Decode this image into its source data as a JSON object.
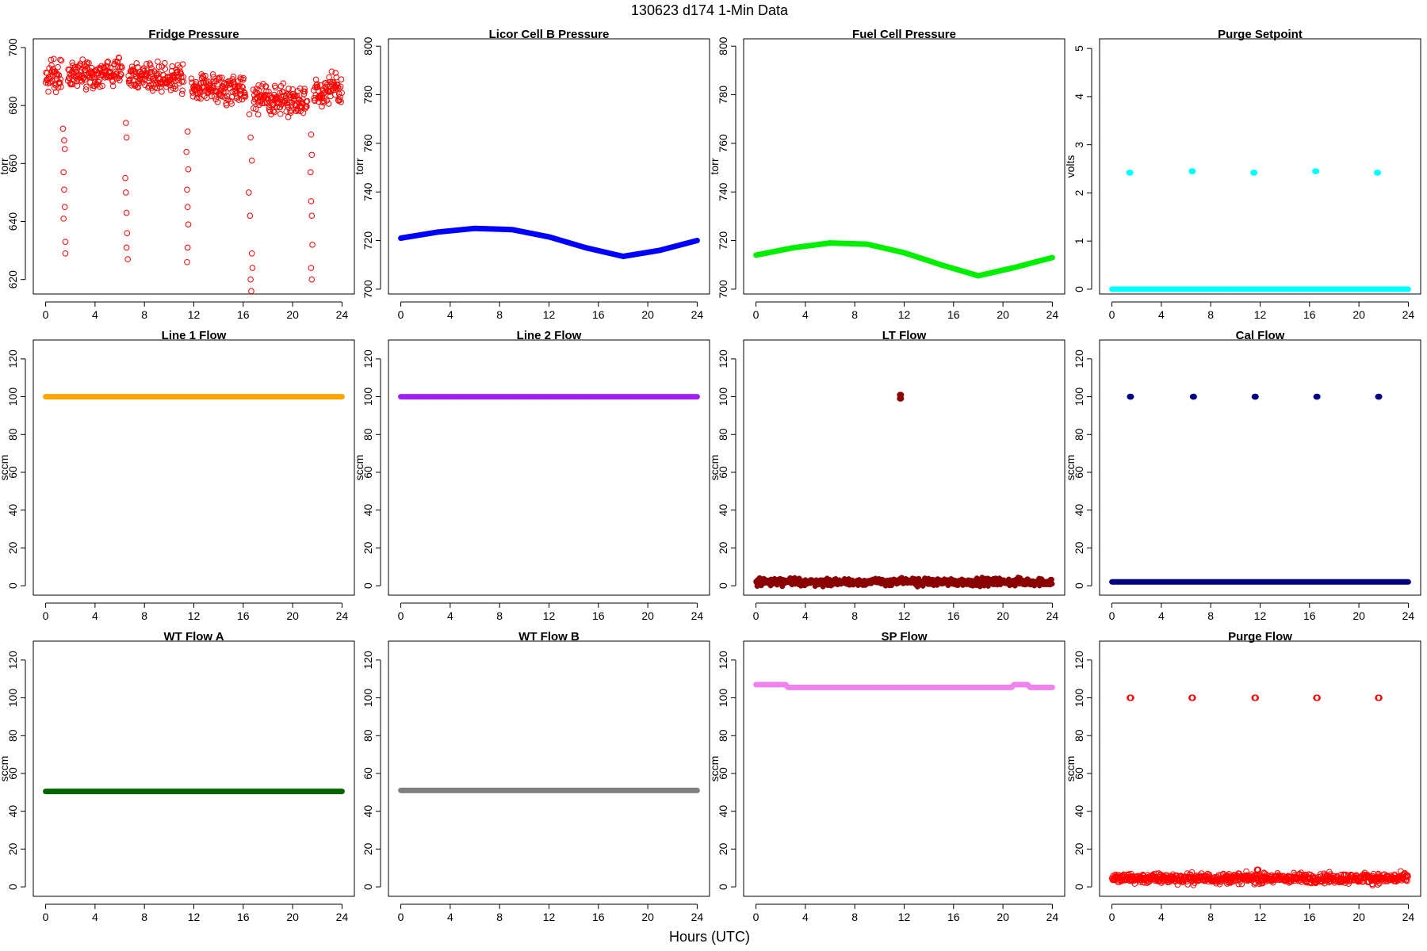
{
  "figure": {
    "suptitle": "130623    d174    1-Min Data",
    "xlabel": "Hours (UTC)"
  },
  "chart_data": [
    {
      "type": "scatter",
      "title": "Fridge Pressure",
      "ylabel": "torr",
      "ylim": [
        615,
        703
      ],
      "yticks": [
        620,
        640,
        660,
        680,
        700
      ],
      "xlim": [
        -1,
        25
      ],
      "xticks": [
        0,
        4,
        8,
        12,
        16,
        20,
        24
      ],
      "color": "#ff0000",
      "marker": "open-circle",
      "series": [
        {
          "kind": "band",
          "segments": [
            [
              0,
              1.3,
              690,
              5
            ],
            [
              1.8,
              6.2,
              691,
              4.5
            ],
            [
              6.7,
              11.2,
              690,
              4.5
            ],
            [
              11.8,
              16.2,
              686,
              4.5
            ],
            [
              16.8,
              21.2,
              682,
              4.5
            ],
            [
              21.7,
              24,
              685,
              5
            ]
          ]
        },
        {
          "kind": "dips",
          "points": [
            [
              1.4,
              672
            ],
            [
              1.5,
              668
            ],
            [
              1.55,
              665
            ],
            [
              1.45,
              657
            ],
            [
              1.5,
              651
            ],
            [
              1.55,
              645
            ],
            [
              1.45,
              641
            ],
            [
              1.6,
              633
            ],
            [
              1.6,
              629
            ],
            [
              6.5,
              674
            ],
            [
              6.55,
              669
            ],
            [
              6.45,
              655
            ],
            [
              6.5,
              650
            ],
            [
              6.55,
              643
            ],
            [
              6.6,
              636
            ],
            [
              6.55,
              631
            ],
            [
              6.65,
              627
            ],
            [
              11.5,
              671
            ],
            [
              11.4,
              664
            ],
            [
              11.55,
              658
            ],
            [
              11.45,
              651
            ],
            [
              11.5,
              645
            ],
            [
              11.55,
              639
            ],
            [
              11.5,
              631
            ],
            [
              11.45,
              626
            ],
            [
              16.5,
              677
            ],
            [
              16.6,
              669
            ],
            [
              16.7,
              661
            ],
            [
              16.45,
              650
            ],
            [
              16.55,
              642
            ],
            [
              16.7,
              629
            ],
            [
              16.75,
              624
            ],
            [
              16.6,
              620
            ],
            [
              16.65,
              616
            ],
            [
              21.5,
              670
            ],
            [
              21.55,
              663
            ],
            [
              21.45,
              657
            ],
            [
              21.5,
              647
            ],
            [
              21.55,
              642
            ],
            [
              21.6,
              632
            ],
            [
              21.5,
              624
            ],
            [
              21.55,
              620
            ]
          ]
        }
      ]
    },
    {
      "type": "line",
      "title": "Licor Cell B Pressure",
      "ylabel": "torr",
      "ylim": [
        698,
        803
      ],
      "yticks": [
        700,
        720,
        740,
        760,
        780,
        800
      ],
      "xlim": [
        -1,
        25
      ],
      "xticks": [
        0,
        4,
        8,
        12,
        16,
        20,
        24
      ],
      "color": "#0000ff",
      "series": [
        {
          "x": [
            0,
            3,
            6,
            9,
            12,
            15,
            18,
            21,
            24
          ],
          "y": [
            721,
            723.5,
            725,
            724.5,
            721.5,
            717,
            713.5,
            716,
            720
          ]
        }
      ]
    },
    {
      "type": "line",
      "title": "Fuel Cell Pressure",
      "ylabel": "torr",
      "ylim": [
        698,
        803
      ],
      "yticks": [
        700,
        720,
        740,
        760,
        780,
        800
      ],
      "xlim": [
        -1,
        25
      ],
      "xticks": [
        0,
        4,
        8,
        12,
        16,
        20,
        24
      ],
      "color": "#00ee00",
      "series": [
        {
          "x": [
            0,
            3,
            6,
            9,
            12,
            15,
            18,
            21,
            24
          ],
          "y": [
            714,
            717,
            719,
            718.5,
            715,
            710,
            705.5,
            709,
            713
          ]
        }
      ]
    },
    {
      "type": "scatter",
      "title": "Purge Setpoint",
      "ylabel": "volts",
      "ylim": [
        -0.1,
        5.2
      ],
      "yticks": [
        0,
        1,
        2,
        3,
        4,
        5
      ],
      "xlim": [
        -1,
        25
      ],
      "xticks": [
        0,
        4,
        8,
        12,
        16,
        20,
        24
      ],
      "color": "#00ffff",
      "series": [
        {
          "kind": "hline",
          "x": [
            0,
            24
          ],
          "y": 0
        },
        {
          "kind": "clusters",
          "points": [
            [
              1.45,
              2.42
            ],
            [
              6.5,
              2.45
            ],
            [
              11.5,
              2.42
            ],
            [
              16.5,
              2.45
            ],
            [
              21.5,
              2.42
            ]
          ]
        }
      ]
    },
    {
      "type": "line",
      "title": "Line 1 Flow",
      "ylabel": "sccm",
      "ylim": [
        -5,
        130
      ],
      "yticks": [
        0,
        20,
        40,
        60,
        80,
        100,
        120
      ],
      "xlim": [
        -1,
        25
      ],
      "xticks": [
        0,
        4,
        8,
        12,
        16,
        20,
        24
      ],
      "color": "#ffa500",
      "series": [
        {
          "x": [
            0,
            24
          ],
          "y": [
            100,
            100
          ]
        }
      ]
    },
    {
      "type": "line",
      "title": "Line 2 Flow",
      "ylabel": "sccm",
      "ylim": [
        -5,
        130
      ],
      "yticks": [
        0,
        20,
        40,
        60,
        80,
        100,
        120
      ],
      "xlim": [
        -1,
        25
      ],
      "xticks": [
        0,
        4,
        8,
        12,
        16,
        20,
        24
      ],
      "color": "#a020f0",
      "series": [
        {
          "x": [
            0,
            24
          ],
          "y": [
            100,
            100
          ]
        }
      ]
    },
    {
      "type": "scatter",
      "title": "LT Flow",
      "ylabel": "sccm",
      "ylim": [
        -5,
        130
      ],
      "yticks": [
        0,
        20,
        40,
        60,
        80,
        100,
        120
      ],
      "xlim": [
        -1,
        25
      ],
      "xticks": [
        0,
        4,
        8,
        12,
        16,
        20,
        24
      ],
      "color": "#8b0000",
      "series": [
        {
          "kind": "band",
          "segments": [
            [
              0,
              24,
              2,
              1.8
            ]
          ]
        },
        {
          "kind": "clusters",
          "points": [
            [
              11.7,
              101
            ],
            [
              11.7,
              99
            ]
          ]
        }
      ]
    },
    {
      "type": "scatter",
      "title": "Cal Flow",
      "ylabel": "sccm",
      "ylim": [
        -5,
        130
      ],
      "yticks": [
        0,
        20,
        40,
        60,
        80,
        100,
        120
      ],
      "xlim": [
        -1,
        25
      ],
      "xticks": [
        0,
        4,
        8,
        12,
        16,
        20,
        24
      ],
      "color": "#000080",
      "series": [
        {
          "kind": "hline",
          "x": [
            0,
            24
          ],
          "y": 2
        },
        {
          "kind": "clusters",
          "points": [
            [
              1.5,
              100
            ],
            [
              6.6,
              100
            ],
            [
              11.6,
              100
            ],
            [
              16.6,
              100
            ],
            [
              21.6,
              100
            ]
          ]
        }
      ]
    },
    {
      "type": "line",
      "title": "WT Flow A",
      "ylabel": "sccm",
      "ylim": [
        -5,
        130
      ],
      "yticks": [
        0,
        20,
        40,
        60,
        80,
        100,
        120
      ],
      "xlim": [
        -1,
        25
      ],
      "xticks": [
        0,
        4,
        8,
        12,
        16,
        20,
        24
      ],
      "color": "#006400",
      "series": [
        {
          "x": [
            0,
            24
          ],
          "y": [
            50.5,
            50.5
          ]
        }
      ]
    },
    {
      "type": "line",
      "title": "WT Flow B",
      "ylabel": "",
      "ylim": [
        -5,
        130
      ],
      "yticks": [
        0,
        20,
        40,
        60,
        80,
        100,
        120
      ],
      "xlim": [
        -1,
        25
      ],
      "xticks": [
        0,
        4,
        8,
        12,
        16,
        20,
        24
      ],
      "color": "#808080",
      "series": [
        {
          "x": [
            0,
            24
          ],
          "y": [
            51,
            51
          ]
        }
      ]
    },
    {
      "type": "line",
      "title": "SP Flow",
      "ylabel": "sccm",
      "ylim": [
        -5,
        130
      ],
      "yticks": [
        0,
        20,
        40,
        60,
        80,
        100,
        120
      ],
      "xlim": [
        -1,
        25
      ],
      "xticks": [
        0,
        4,
        8,
        12,
        16,
        20,
        24
      ],
      "color": "#ee82ee",
      "series": [
        {
          "x": [
            0,
            2.4,
            2.6,
            20.7,
            20.9,
            22,
            22.2,
            24
          ],
          "y": [
            107,
            107,
            105.5,
            105.5,
            107,
            107,
            105.5,
            105.5
          ]
        }
      ]
    },
    {
      "type": "scatter",
      "title": "Purge Flow",
      "ylabel": "sccm",
      "ylim": [
        -5,
        130
      ],
      "yticks": [
        0,
        20,
        40,
        60,
        80,
        100,
        120
      ],
      "xlim": [
        -1,
        25
      ],
      "xticks": [
        0,
        4,
        8,
        12,
        16,
        20,
        24
      ],
      "color": "#ff0000",
      "marker": "open-circle",
      "series": [
        {
          "kind": "band",
          "segments": [
            [
              0,
              24,
              4.5,
              2.5
            ]
          ]
        },
        {
          "kind": "clusters",
          "points": [
            [
              1.5,
              100
            ],
            [
              6.5,
              100
            ],
            [
              11.6,
              100
            ],
            [
              16.6,
              100
            ],
            [
              21.6,
              100
            ],
            [
              11.8,
              9
            ]
          ]
        }
      ]
    }
  ]
}
